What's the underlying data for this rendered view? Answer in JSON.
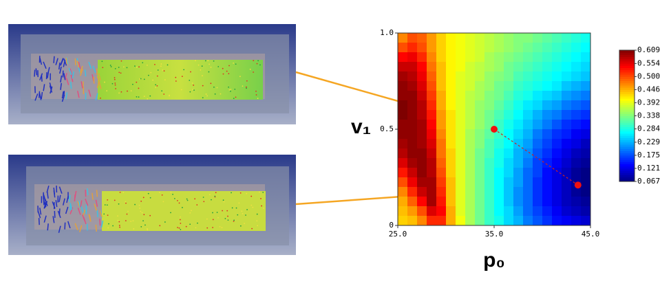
{
  "chart_data": {
    "type": "heatmap",
    "x_label": "p₀",
    "y_label": "v₁",
    "xlim": [
      25,
      45
    ],
    "ylim": [
      0,
      1
    ],
    "xticks": [
      {
        "value": 25,
        "label": "25.0"
      },
      {
        "value": 35,
        "label": "35.0"
      },
      {
        "value": 45,
        "label": "45.0"
      }
    ],
    "yticks": [
      0,
      {
        "value": 0.5,
        "label": "0.5"
      },
      {
        "value": 1,
        "label": "1.0"
      }
    ],
    "clim": [
      0.067,
      0.609
    ],
    "colorbar_ticks": [
      {
        "value": 0.609,
        "label": "0.609"
      },
      {
        "value": 0.554,
        "label": "0.554"
      },
      {
        "value": 0.5,
        "label": "0.500"
      },
      {
        "value": 0.446,
        "label": "0.446"
      },
      {
        "value": 0.392,
        "label": "0.392"
      },
      {
        "value": 0.338,
        "label": "0.338"
      },
      {
        "value": 0.284,
        "label": "0.284"
      },
      {
        "value": 0.229,
        "label": "0.229"
      },
      {
        "value": 0.175,
        "label": "0.175"
      },
      {
        "value": 0.121,
        "label": "0.121"
      },
      {
        "value": 0.067,
        "label": "0.067"
      }
    ],
    "points": [
      {
        "x": 35,
        "y": 0.5
      },
      {
        "x": 43.7,
        "y": 0.21
      }
    ],
    "values": [
      [
        0.47,
        0.5,
        0.49,
        0.46,
        0.43,
        0.41,
        0.4,
        0.39,
        0.38,
        0.37,
        0.36,
        0.35,
        0.34,
        0.34,
        0.33,
        0.32,
        0.31,
        0.3,
        0.29,
        0.28
      ],
      [
        0.5,
        0.52,
        0.5,
        0.46,
        0.43,
        0.41,
        0.4,
        0.39,
        0.38,
        0.37,
        0.36,
        0.35,
        0.34,
        0.33,
        0.32,
        0.31,
        0.3,
        0.29,
        0.28,
        0.27
      ],
      [
        0.54,
        0.55,
        0.52,
        0.47,
        0.43,
        0.41,
        0.4,
        0.39,
        0.38,
        0.36,
        0.35,
        0.34,
        0.33,
        0.32,
        0.31,
        0.3,
        0.29,
        0.28,
        0.27,
        0.26
      ],
      [
        0.57,
        0.57,
        0.54,
        0.48,
        0.44,
        0.41,
        0.4,
        0.38,
        0.37,
        0.36,
        0.35,
        0.33,
        0.32,
        0.31,
        0.3,
        0.29,
        0.28,
        0.27,
        0.26,
        0.25
      ],
      [
        0.59,
        0.58,
        0.55,
        0.49,
        0.44,
        0.41,
        0.39,
        0.38,
        0.37,
        0.35,
        0.34,
        0.33,
        0.31,
        0.3,
        0.29,
        0.28,
        0.27,
        0.26,
        0.25,
        0.24
      ],
      [
        0.6,
        0.59,
        0.56,
        0.5,
        0.44,
        0.41,
        0.39,
        0.38,
        0.36,
        0.35,
        0.33,
        0.32,
        0.3,
        0.29,
        0.28,
        0.27,
        0.26,
        0.24,
        0.23,
        0.22
      ],
      [
        0.6,
        0.6,
        0.57,
        0.51,
        0.45,
        0.41,
        0.39,
        0.37,
        0.36,
        0.34,
        0.33,
        0.31,
        0.29,
        0.28,
        0.26,
        0.25,
        0.24,
        0.22,
        0.21,
        0.2
      ],
      [
        0.61,
        0.6,
        0.58,
        0.52,
        0.45,
        0.41,
        0.39,
        0.37,
        0.35,
        0.34,
        0.32,
        0.3,
        0.28,
        0.26,
        0.25,
        0.23,
        0.22,
        0.2,
        0.19,
        0.18
      ],
      [
        0.61,
        0.6,
        0.58,
        0.53,
        0.46,
        0.42,
        0.39,
        0.37,
        0.35,
        0.33,
        0.31,
        0.29,
        0.27,
        0.25,
        0.23,
        0.21,
        0.2,
        0.18,
        0.17,
        0.16
      ],
      [
        0.6,
        0.6,
        0.59,
        0.54,
        0.46,
        0.42,
        0.39,
        0.37,
        0.35,
        0.33,
        0.3,
        0.28,
        0.26,
        0.24,
        0.22,
        0.2,
        0.18,
        0.16,
        0.15,
        0.14
      ],
      [
        0.6,
        0.6,
        0.59,
        0.55,
        0.47,
        0.42,
        0.39,
        0.36,
        0.34,
        0.32,
        0.3,
        0.27,
        0.25,
        0.23,
        0.2,
        0.18,
        0.16,
        0.15,
        0.13,
        0.12
      ],
      [
        0.59,
        0.6,
        0.59,
        0.56,
        0.48,
        0.42,
        0.39,
        0.36,
        0.34,
        0.31,
        0.29,
        0.27,
        0.24,
        0.22,
        0.19,
        0.17,
        0.15,
        0.13,
        0.12,
        0.1
      ],
      [
        0.58,
        0.6,
        0.6,
        0.57,
        0.48,
        0.43,
        0.39,
        0.36,
        0.33,
        0.31,
        0.28,
        0.26,
        0.23,
        0.21,
        0.18,
        0.16,
        0.14,
        0.12,
        0.1,
        0.09
      ],
      [
        0.56,
        0.59,
        0.6,
        0.58,
        0.49,
        0.43,
        0.39,
        0.36,
        0.33,
        0.3,
        0.28,
        0.25,
        0.23,
        0.2,
        0.17,
        0.15,
        0.13,
        0.11,
        0.09,
        0.08
      ],
      [
        0.53,
        0.57,
        0.6,
        0.58,
        0.5,
        0.43,
        0.39,
        0.36,
        0.33,
        0.3,
        0.27,
        0.25,
        0.22,
        0.19,
        0.17,
        0.14,
        0.12,
        0.1,
        0.08,
        0.07
      ],
      [
        0.5,
        0.55,
        0.59,
        0.59,
        0.51,
        0.44,
        0.39,
        0.36,
        0.33,
        0.3,
        0.27,
        0.24,
        0.22,
        0.19,
        0.16,
        0.14,
        0.12,
        0.1,
        0.08,
        0.07
      ],
      [
        0.47,
        0.52,
        0.57,
        0.59,
        0.52,
        0.44,
        0.39,
        0.36,
        0.33,
        0.3,
        0.27,
        0.24,
        0.21,
        0.19,
        0.16,
        0.14,
        0.12,
        0.1,
        0.08,
        0.07
      ],
      [
        0.45,
        0.49,
        0.54,
        0.59,
        0.53,
        0.44,
        0.39,
        0.36,
        0.33,
        0.3,
        0.27,
        0.24,
        0.21,
        0.19,
        0.16,
        0.14,
        0.12,
        0.1,
        0.09,
        0.08
      ],
      [
        0.44,
        0.46,
        0.5,
        0.56,
        0.54,
        0.45,
        0.39,
        0.36,
        0.33,
        0.3,
        0.27,
        0.25,
        0.22,
        0.19,
        0.17,
        0.15,
        0.13,
        0.11,
        0.1,
        0.09
      ],
      [
        0.43,
        0.44,
        0.47,
        0.52,
        0.52,
        0.45,
        0.4,
        0.36,
        0.33,
        0.3,
        0.28,
        0.25,
        0.23,
        0.2,
        0.18,
        0.16,
        0.14,
        0.13,
        0.12,
        0.11
      ]
    ]
  }
}
